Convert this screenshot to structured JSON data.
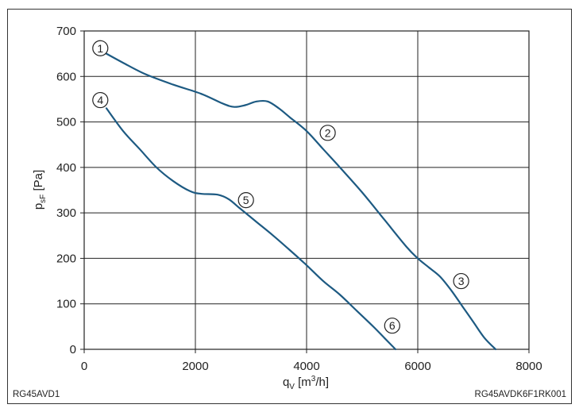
{
  "chart_data": {
    "type": "line",
    "xlabel": "qV [m3/h]",
    "ylabel": "psF [Pa]",
    "xlim": [
      0,
      8000
    ],
    "ylim": [
      0,
      700
    ],
    "x_ticks": [
      0,
      2000,
      4000,
      6000,
      8000
    ],
    "y_ticks": [
      0,
      100,
      200,
      300,
      400,
      500,
      600,
      700
    ],
    "grid": true,
    "footer_left": "RG45AVD1",
    "footer_right": "RG45AVDK6F1RK001",
    "series": [
      {
        "x": [
          400,
          700,
          1100,
          1600,
          2100,
          2500,
          2700,
          2900,
          3100,
          3300,
          3500,
          3700,
          4000,
          4300,
          4600,
          5000,
          5400,
          5800,
          6000,
          6200,
          6400,
          6600,
          6800,
          7000,
          7200,
          7400
        ],
        "y": [
          650,
          630,
          605,
          582,
          562,
          540,
          533,
          537,
          545,
          545,
          530,
          510,
          480,
          440,
          400,
          345,
          285,
          225,
          200,
          180,
          160,
          130,
          95,
          60,
          25,
          0
        ]
      },
      {
        "x": [
          400,
          700,
          1000,
          1300,
          1600,
          1900,
          2100,
          2400,
          2600,
          2800,
          3100,
          3400,
          3700,
          4000,
          4300,
          4600,
          4900,
          5200,
          5400,
          5600
        ],
        "y": [
          530,
          480,
          440,
          400,
          370,
          348,
          342,
          340,
          330,
          310,
          280,
          250,
          218,
          185,
          150,
          120,
          85,
          50,
          25,
          0
        ]
      }
    ],
    "markers": [
      {
        "label": "1",
        "x": 290,
        "y": 662
      },
      {
        "label": "2",
        "x": 4380,
        "y": 476
      },
      {
        "label": "3",
        "x": 6780,
        "y": 150
      },
      {
        "label": "4",
        "x": 290,
        "y": 548
      },
      {
        "label": "5",
        "x": 2910,
        "y": 328
      },
      {
        "label": "6",
        "x": 5540,
        "y": 52
      }
    ]
  }
}
